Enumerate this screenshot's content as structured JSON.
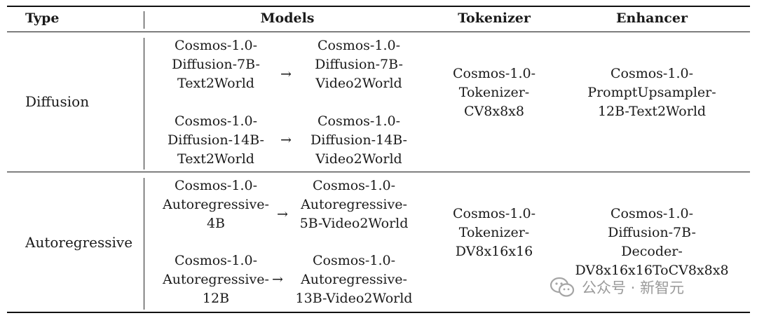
{
  "table": {
    "headers": {
      "type": "Type",
      "models": "Models",
      "tokenizer": "Tokenizer",
      "enhancer": "Enhancer"
    },
    "rows": [
      {
        "type": "Diffusion",
        "pairs": [
          {
            "from": [
              "Cosmos-1.0-",
              "Diffusion-7B-",
              "Text2World"
            ],
            "arrow": "→",
            "to": [
              "Cosmos-1.0-",
              "Diffusion-7B-",
              "Video2World"
            ]
          },
          {
            "from": [
              "Cosmos-1.0-",
              "Diffusion-14B-",
              "Text2World"
            ],
            "arrow": "→",
            "to": [
              "Cosmos-1.0-",
              "Diffusion-14B-",
              "Video2World"
            ]
          }
        ],
        "tokenizer": [
          "Cosmos-1.0-",
          "Tokenizer-",
          "CV8x8x8"
        ],
        "enhancer": [
          "Cosmos-1.0-",
          "PromptUpsampler-",
          "12B-Text2World"
        ]
      },
      {
        "type": "Autoregressive",
        "pairs": [
          {
            "from": [
              "Cosmos-1.0-",
              "Autoregressive-",
              "4B"
            ],
            "arrow": "→",
            "to": [
              "Cosmos-1.0-",
              "Autoregressive-",
              "5B-Video2World"
            ]
          },
          {
            "from": [
              "Cosmos-1.0-",
              "Autoregressive-",
              "12B"
            ],
            "arrow": "→",
            "to": [
              "Cosmos-1.0-",
              "Autoregressive-",
              "13B-Video2World"
            ]
          }
        ],
        "tokenizer": [
          "Cosmos-1.0-",
          "Tokenizer-",
          "DV8x16x16"
        ],
        "enhancer": [
          "Cosmos-1.0-",
          "Diffusion-7B-",
          "Decoder-",
          "DV8x16x16ToCV8x8x8"
        ]
      }
    ]
  },
  "watermark": {
    "icon": "wechat-icon",
    "text": "公众号 · 新智元",
    "color": "#9a9a9a"
  }
}
